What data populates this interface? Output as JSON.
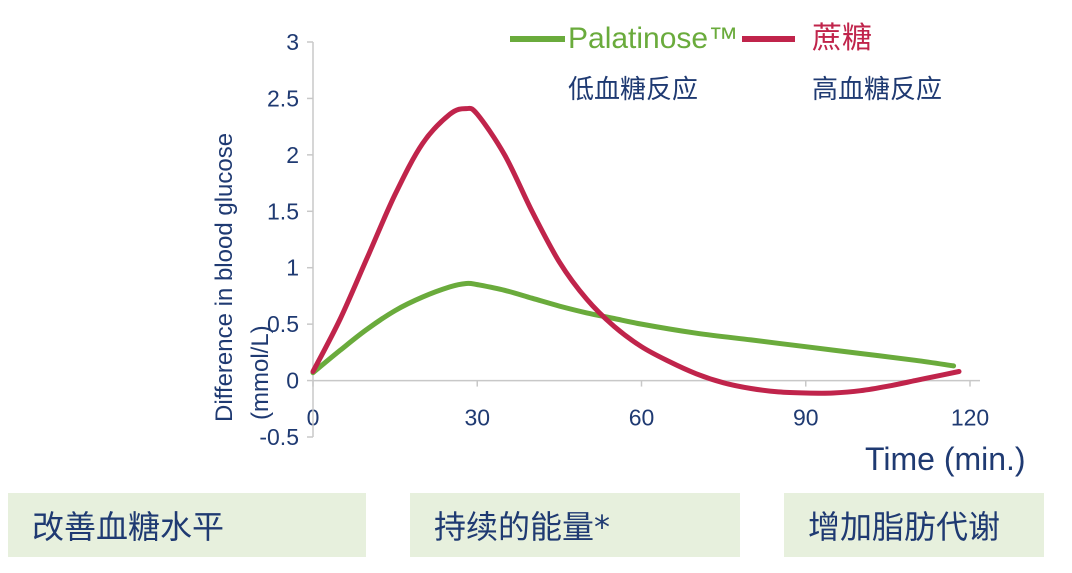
{
  "chart_data": {
    "type": "line",
    "xlabel": "Time (min.)",
    "ylabel_line1": "Difference in blood  glucose",
    "ylabel_line2": "(mmol/L)",
    "x_ticks": [
      "0",
      "30",
      "60",
      "90",
      "120"
    ],
    "y_ticks": [
      "3",
      "2.5",
      "2",
      "1.5",
      "1",
      "0.5",
      "0",
      "-0.5"
    ],
    "xlim": [
      0,
      120
    ],
    "ylim": [
      -0.5,
      3
    ],
    "grid": false,
    "series": [
      {
        "name": "Palatinose™",
        "subtitle": "低血糖反应",
        "color": "#6aab3c",
        "x": [
          0,
          5,
          10,
          15,
          20,
          25,
          28,
          30,
          35,
          40,
          45,
          50,
          55,
          60,
          70,
          80,
          90,
          100,
          110,
          117
        ],
        "y": [
          0.07,
          0.27,
          0.46,
          0.62,
          0.74,
          0.83,
          0.86,
          0.85,
          0.8,
          0.73,
          0.66,
          0.6,
          0.55,
          0.5,
          0.42,
          0.36,
          0.3,
          0.24,
          0.18,
          0.13
        ]
      },
      {
        "name": "蔗糖",
        "subtitle": "高血糖反应",
        "color": "#c0244b",
        "x": [
          0,
          5,
          10,
          15,
          20,
          25,
          28,
          30,
          35,
          40,
          45,
          50,
          55,
          60,
          65,
          70,
          75,
          80,
          85,
          90,
          95,
          100,
          105,
          110,
          115,
          118
        ],
        "y": [
          0.08,
          0.55,
          1.1,
          1.65,
          2.1,
          2.36,
          2.41,
          2.36,
          2.0,
          1.5,
          1.05,
          0.72,
          0.48,
          0.3,
          0.17,
          0.06,
          -0.02,
          -0.07,
          -0.1,
          -0.11,
          -0.11,
          -0.09,
          -0.05,
          0.0,
          0.05,
          0.08
        ]
      }
    ],
    "legend": "top-right"
  },
  "benefits": [
    "改善血糖水平",
    "持续的能量*",
    "增加脂肪代谢"
  ]
}
